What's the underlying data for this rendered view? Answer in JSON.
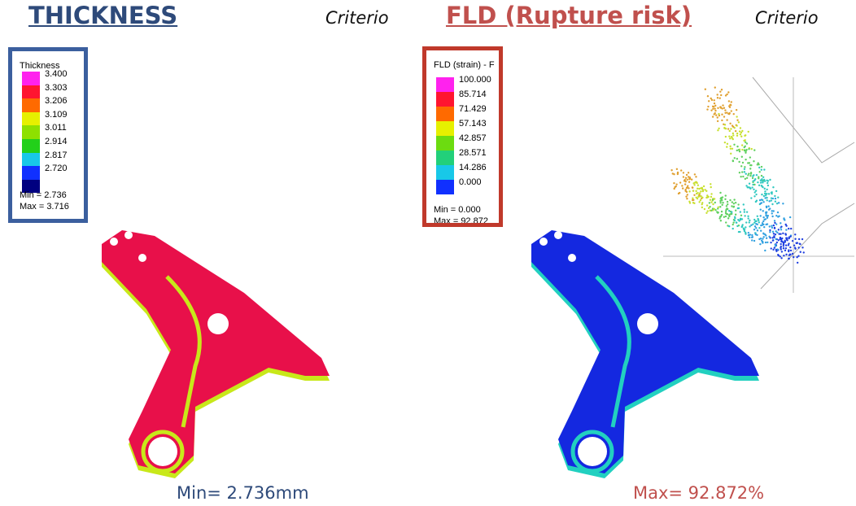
{
  "left": {
    "title": "THICKNESS",
    "criterion": "Criterio",
    "legend": {
      "title": "Thickness",
      "values": [
        "3.400",
        "3.303",
        "3.206",
        "3.109",
        "3.011",
        "2.914",
        "2.817",
        "2.720"
      ],
      "min": "Min =  2.736",
      "max": "Max =  3.716"
    },
    "caption": "Min= 2.736mm"
  },
  "right": {
    "title": "FLD (Rupture risk)",
    "criterion": "Criterio",
    "legend": {
      "title": "FLD (strain) - F",
      "values": [
        "100.000",
        "85.714",
        "71.429",
        "57.143",
        "42.857",
        "28.571",
        "14.286",
        "0.000"
      ],
      "min": "Min =  0.000",
      "max": "Max =  92.872"
    },
    "caption": "Max= 92.872%"
  }
}
